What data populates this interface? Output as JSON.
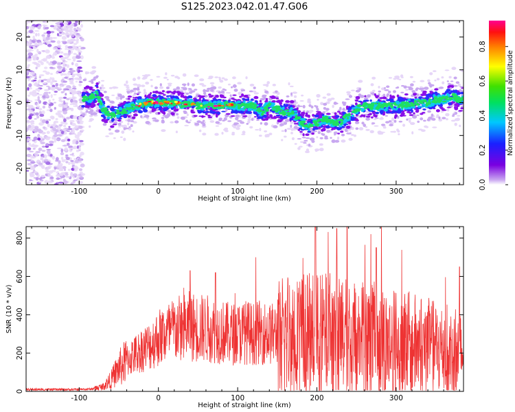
{
  "title": "S125.2023.042.01.47.G06",
  "chart_data": [
    {
      "type": "heatmap",
      "xlabel": "Height of straight line (km)",
      "ylabel": "Frequency (Hz)",
      "xlim": [
        -167,
        385
      ],
      "ylim": [
        -25,
        25
      ],
      "xticks": [
        -100,
        0,
        100,
        200,
        300
      ],
      "yticks": [
        -20,
        -10,
        0,
        10,
        20
      ],
      "colorbar": {
        "label": "Normalized spectral amplitude",
        "range": [
          0.0,
          0.95
        ],
        "ticks": [
          0.0,
          0.2,
          0.4,
          0.6,
          0.8
        ],
        "colormap": "rainbow (violet-blue-cyan-green-yellow-red-magenta)"
      },
      "noise_region_x": [
        -167,
        -95
      ],
      "ridge_frequency": {
        "x": [
          -95,
          -85,
          -78,
          -70,
          -60,
          -50,
          -40,
          -30,
          -20,
          -10,
          0,
          10,
          20,
          30,
          40,
          50,
          60,
          70,
          80,
          90,
          100,
          110,
          120,
          130,
          140,
          150,
          160,
          170,
          180,
          190,
          200,
          210,
          220,
          230,
          240,
          250,
          260,
          270,
          280,
          290,
          300,
          310,
          320,
          330,
          340,
          350,
          360,
          370,
          380
        ],
        "y": [
          1,
          1.5,
          3,
          -2,
          -4,
          -3,
          -2,
          -1,
          -0.5,
          0,
          0,
          0,
          0,
          -0.5,
          0,
          -1,
          -1,
          -1,
          -1,
          -0.5,
          -1,
          -1,
          -1,
          -3,
          -1,
          -2,
          -3,
          -3,
          -6,
          -7,
          -6,
          -5,
          -6,
          -6,
          -4,
          -2,
          -1,
          -1,
          -1,
          -1,
          -1,
          -0.5,
          -0.5,
          0,
          0,
          1,
          1,
          2,
          1
        ]
      }
    },
    {
      "type": "line",
      "xlabel": "Height of straight line (km)",
      "ylabel": "SNR (10 * v/v)",
      "xlim": [
        -167,
        385
      ],
      "ylim": [
        0,
        860
      ],
      "xticks": [
        -100,
        0,
        100,
        200,
        300
      ],
      "yticks": [
        0,
        200,
        400,
        600,
        800
      ],
      "color": "#ee3333",
      "series": [
        {
          "x": [
            -167,
            -140,
            -110,
            -85,
            -70,
            -60,
            -50,
            -40,
            -30,
            -20,
            -10,
            0,
            10,
            20,
            30,
            40,
            50,
            60,
            70,
            80,
            90,
            100,
            110,
            120,
            130,
            140,
            150,
            160,
            170,
            180,
            190,
            200,
            210,
            220,
            230,
            240,
            250,
            260,
            270,
            280,
            290,
            300,
            310,
            320,
            330,
            340,
            350,
            360,
            370,
            385
          ],
          "y": [
            10,
            10,
            10,
            12,
            25,
            60,
            120,
            160,
            190,
            220,
            240,
            280,
            300,
            320,
            330,
            340,
            330,
            330,
            320,
            310,
            300,
            300,
            310,
            300,
            310,
            300,
            300,
            300,
            300,
            290,
            290,
            290,
            290,
            290,
            290,
            290,
            280,
            280,
            270,
            260,
            250,
            250,
            250,
            240,
            240,
            230,
            220,
            220,
            210,
            200
          ]
        }
      ],
      "peaks": [
        {
          "x": 40,
          "y": 630
        },
        {
          "x": 72,
          "y": 620
        },
        {
          "x": 198,
          "y": 860
        },
        {
          "x": 225,
          "y": 850
        },
        {
          "x": 238,
          "y": 860
        },
        {
          "x": 275,
          "y": 750
        },
        {
          "x": 380,
          "y": 650
        }
      ]
    }
  ]
}
